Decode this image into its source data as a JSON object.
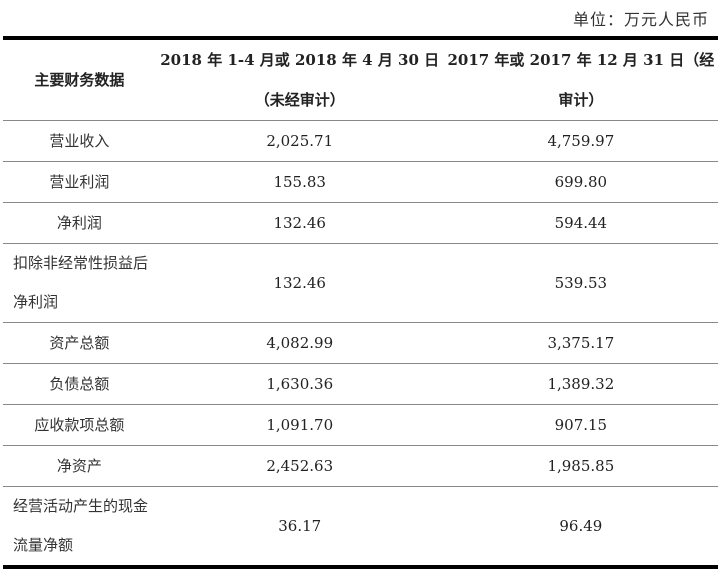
{
  "unit": "单位：万元人民币",
  "headers": [
    "主要财务数据",
    "2018 年 1-4 月或 2018 年 4 月 30 日（未经审计）",
    "2017 年或 2017 年 12 月 31 日（经审计）"
  ],
  "rows": [
    {
      "label": "营业收入",
      "v2018": "2,025.71",
      "v2017": "4,759.97"
    },
    {
      "label": "营业利润",
      "v2018": "155.83",
      "v2017": "699.80"
    },
    {
      "label": "净利润",
      "v2018": "132.46",
      "v2017": "594.44"
    },
    {
      "label": "扣除非经常性损益后净利润",
      "v2018": "132.46",
      "v2017": "539.53"
    },
    {
      "label": "资产总额",
      "v2018": "4,082.99",
      "v2017": "3,375.17"
    },
    {
      "label": "负债总额",
      "v2018": "1,630.36",
      "v2017": "1,389.32"
    },
    {
      "label": "应收款项总额",
      "v2018": "1,091.70",
      "v2017": "907.15"
    },
    {
      "label": "净资产",
      "v2018": "2,452.63",
      "v2017": "1,985.85"
    },
    {
      "label": "经营活动产生的现金流量净额",
      "v2018": "36.17",
      "v2017": "96.49"
    }
  ]
}
